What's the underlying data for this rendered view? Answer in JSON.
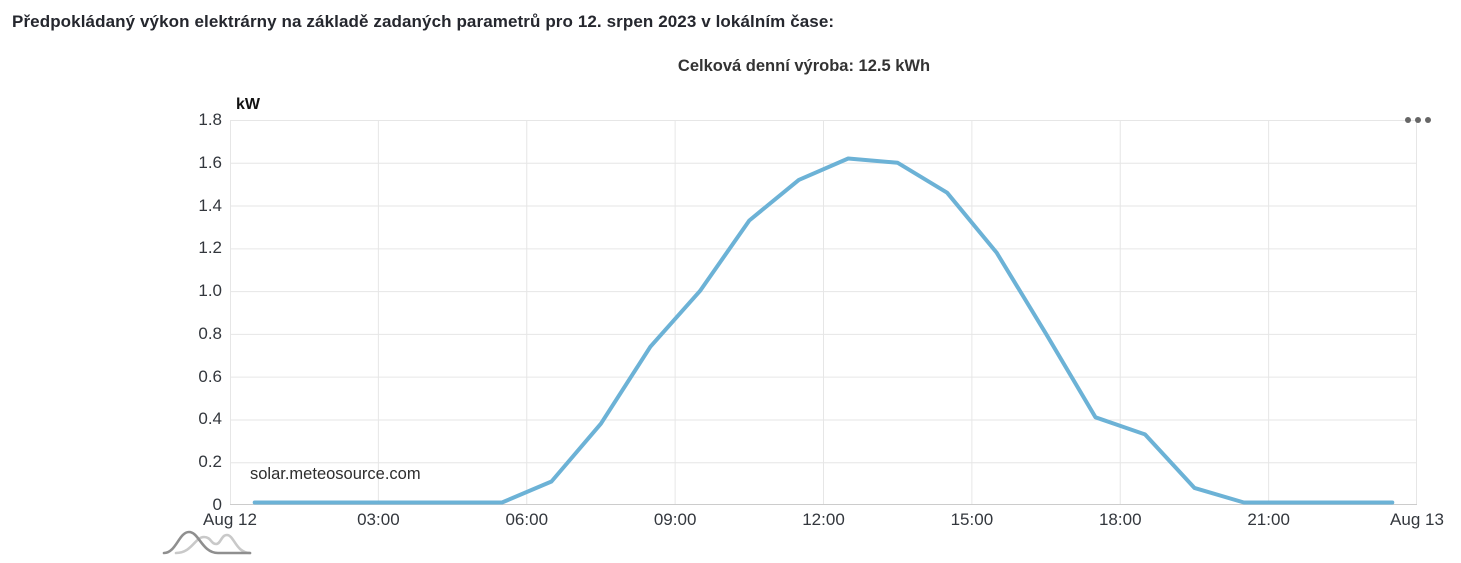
{
  "header": {
    "title": "Předpokládaný výkon elektrárny na základě zadaných parametrů pro 12. srpen 2023 v lokálním čase:"
  },
  "chart": {
    "subtitle": "Celková denní výroba: 12.5 kWh",
    "watermark": "solar.meteosource.com",
    "y_axis_title": "kW",
    "context_menu_icon": "ellipsis-icon",
    "logo_icon": "meteosource-waves-logo",
    "colors": {
      "line": "#6cb2d6",
      "grid": "#e6e6e6",
      "axis_line": "#cccccc",
      "tick_text": "#33373d",
      "title_text": "#25272e",
      "menu_dots": "#666666",
      "logo_dark": "#8f8f8f",
      "logo_light": "#c9c9c9"
    }
  },
  "chart_data": {
    "type": "line",
    "title": "Celková denní výroba: 12.5 kWh",
    "ylabel": "kW",
    "xlabel": "",
    "total_daily_production_kwh": 12.5,
    "date": "12. srpen 2023",
    "grid": true,
    "legend": "none",
    "ylim": [
      0,
      1.8
    ],
    "xlim_hours": [
      0,
      24
    ],
    "x_times": [
      "00:30",
      "01:30",
      "02:30",
      "03:30",
      "04:30",
      "05:30",
      "06:30",
      "07:30",
      "08:30",
      "09:30",
      "10:30",
      "11:30",
      "12:30",
      "13:30",
      "14:30",
      "15:30",
      "16:30",
      "17:30",
      "18:30",
      "19:30",
      "20:30",
      "21:30",
      "22:30",
      "23:30"
    ],
    "x_hours": [
      0.5,
      1.5,
      2.5,
      3.5,
      4.5,
      5.5,
      6.5,
      7.5,
      8.5,
      9.5,
      10.5,
      11.5,
      12.5,
      13.5,
      14.5,
      15.5,
      16.5,
      17.5,
      18.5,
      19.5,
      20.5,
      21.5,
      22.5,
      23.5
    ],
    "values_kw": [
      0,
      0,
      0,
      0,
      0,
      0,
      0.11,
      0.38,
      0.74,
      1.0,
      1.33,
      1.52,
      1.62,
      1.6,
      1.46,
      1.18,
      0.8,
      0.41,
      0.33,
      0.08,
      0,
      0,
      0,
      0
    ],
    "y_ticks": [
      {
        "v": 0,
        "label": "0"
      },
      {
        "v": 0.2,
        "label": "0.2"
      },
      {
        "v": 0.4,
        "label": "0.4"
      },
      {
        "v": 0.6,
        "label": "0.6"
      },
      {
        "v": 0.8,
        "label": "0.8"
      },
      {
        "v": 1.0,
        "label": "1.0"
      },
      {
        "v": 1.2,
        "label": "1.2"
      },
      {
        "v": 1.4,
        "label": "1.4"
      },
      {
        "v": 1.6,
        "label": "1.6"
      },
      {
        "v": 1.8,
        "label": "1.8"
      }
    ],
    "x_ticks": [
      {
        "h": 0,
        "label": "Aug 12"
      },
      {
        "h": 3,
        "label": "03:00"
      },
      {
        "h": 6,
        "label": "06:00"
      },
      {
        "h": 9,
        "label": "09:00"
      },
      {
        "h": 12,
        "label": "12:00"
      },
      {
        "h": 15,
        "label": "15:00"
      },
      {
        "h": 18,
        "label": "18:00"
      },
      {
        "h": 21,
        "label": "21:00"
      },
      {
        "h": 24,
        "label": "Aug 13"
      }
    ]
  }
}
